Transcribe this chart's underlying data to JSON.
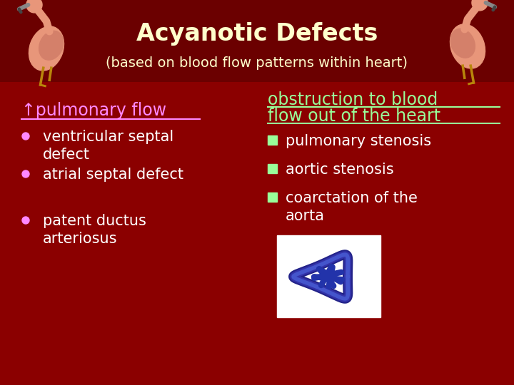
{
  "background_color": "#8B0000",
  "title": "Acyanotic Defects",
  "title_color": "#FFFFCC",
  "title_fontsize": 24,
  "subtitle": "(based on blood flow patterns within heart)",
  "subtitle_color": "#FFFFCC",
  "subtitle_fontsize": 14,
  "left_heading": "↑pulmonary flow",
  "left_heading_color": "#FF88FF",
  "left_items": [
    "ventricular septal\ndefect",
    "atrial septal defect",
    "patent ductus\narteriosus"
  ],
  "left_items_color": "#FFFFFF",
  "left_bullet_color": "#FF88FF",
  "right_heading_line1": "obstruction to blood",
  "right_heading_line2": "flow out of the heart",
  "right_heading_color": "#99FF99",
  "right_items": [
    "pulmonary stenosis",
    "aortic stenosis",
    "coarctation of the\naorta"
  ],
  "right_items_color": "#FFFFFF",
  "right_bullet_color": "#99FF99",
  "flamingo_body_color": "#E8967A",
  "flamingo_wing_color": "#D4806A",
  "flamingo_beak_color": "#888888",
  "flamingo_leg_color": "#B8860B"
}
